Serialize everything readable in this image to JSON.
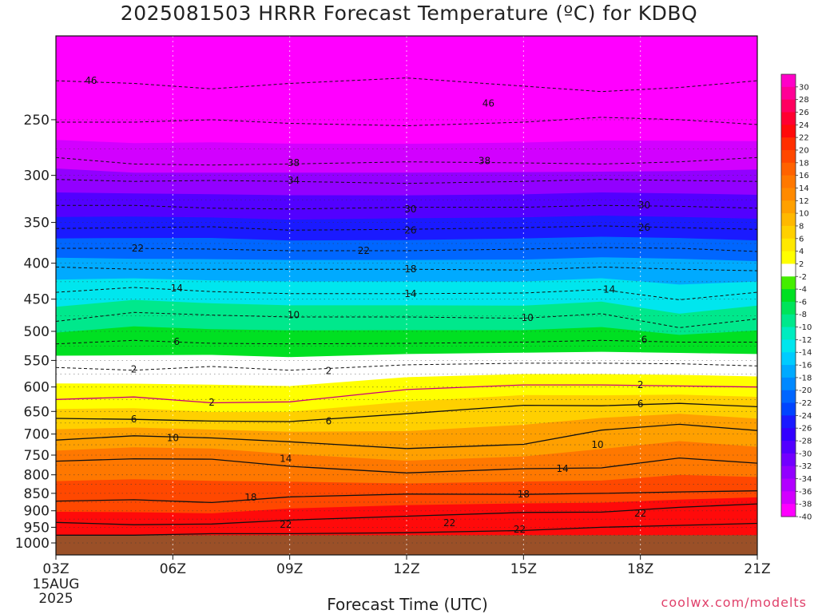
{
  "title": "2025081503 HRRR Forecast Temperature (ºC) for KDBQ",
  "credit": "coolwx.com/modelts",
  "chart_data": {
    "type": "heatmap",
    "title": "2025081503 HRRR Forecast Temperature (ºC) for KDBQ",
    "xlabel": "Forecast Time (UTC)",
    "ylabel": "",
    "x_ticks": [
      "03Z",
      "06Z",
      "09Z",
      "12Z",
      "15Z",
      "18Z",
      "21Z"
    ],
    "x_first_date": [
      "15AUG",
      "2025"
    ],
    "x_hours": [
      3,
      21
    ],
    "y_ticks": [
      250,
      300,
      350,
      400,
      450,
      500,
      550,
      600,
      650,
      700,
      750,
      800,
      850,
      900,
      950,
      1000
    ],
    "y_scale": "log-pressure",
    "y_range": [
      190,
      1040
    ],
    "surface_pressure": 975,
    "colorbar": {
      "ticks": [
        30,
        28,
        26,
        24,
        22,
        20,
        18,
        16,
        14,
        12,
        10,
        8,
        6,
        4,
        2,
        -2,
        -4,
        -6,
        -8,
        -10,
        -12,
        -14,
        -16,
        -18,
        -20,
        -22,
        -24,
        -26,
        -28,
        -30,
        -32,
        -34,
        -36,
        -38,
        -40
      ],
      "colors": [
        "#ff00c8",
        "#ff0096",
        "#ff0060",
        "#ff0030",
        "#ff0a0a",
        "#ff2e00",
        "#ff4800",
        "#ff6200",
        "#ff7800",
        "#ff8a00",
        "#ffa000",
        "#ffb800",
        "#ffd000",
        "#ffe800",
        "#ffff00",
        "#ffffff",
        "#44ee00",
        "#00e022",
        "#00e45a",
        "#00e88c",
        "#00ecc0",
        "#00e6ee",
        "#00ccff",
        "#00aaff",
        "#0088ff",
        "#0066ff",
        "#0044ff",
        "#1a1aff",
        "#3300ff",
        "#5200ff",
        "#7200ff",
        "#9200ff",
        "#b200ff",
        "#d200ff",
        "#ff00ff"
      ]
    },
    "isotherms": [
      {
        "label": "-46",
        "values": [
          220,
          222,
          226,
          222,
          218,
          224,
          228,
          225,
          220
        ]
      },
      {
        "label": "-46",
        "values": [
          252,
          252,
          250,
          253,
          255,
          252,
          248,
          250,
          254
        ]
      },
      {
        "label": "-38",
        "values": [
          283,
          289,
          290,
          289,
          287,
          288,
          289,
          287,
          283
        ]
      },
      {
        "label": "-34",
        "values": [
          304,
          306,
          305,
          306,
          308,
          306,
          304,
          305,
          306
        ]
      },
      {
        "label": "-30",
        "values": [
          331,
          331,
          334,
          335,
          333,
          333,
          331,
          332,
          334
        ]
      },
      {
        "label": "-26",
        "values": [
          357,
          356,
          355,
          359,
          358,
          356,
          354,
          356,
          358
        ]
      },
      {
        "label": "-22",
        "values": [
          381,
          381,
          382,
          384,
          384,
          382,
          380,
          381,
          385
        ]
      },
      {
        "label": "-18",
        "values": [
          405,
          408,
          408,
          408,
          408,
          409,
          405,
          408,
          410
        ]
      },
      {
        "label": "-14",
        "values": [
          440,
          433,
          439,
          442,
          442,
          441,
          436,
          451,
          440
        ]
      },
      {
        "label": "-10",
        "values": [
          484,
          470,
          474,
          477,
          477,
          479,
          472,
          494,
          480
        ]
      },
      {
        "label": "-6",
        "values": [
          521,
          515,
          520,
          521,
          520,
          518,
          515,
          518,
          518
        ]
      },
      {
        "label": "-2",
        "values": [
          563,
          568,
          561,
          568,
          558,
          555,
          555,
          556,
          560
        ]
      },
      {
        "label": "2",
        "values": [
          625,
          620,
          632,
          630,
          605,
          596,
          596,
          598,
          600
        ]
      },
      {
        "label": "6",
        "values": [
          665,
          667,
          671,
          672,
          655,
          637,
          638,
          633,
          640
        ]
      },
      {
        "label": "10",
        "values": [
          714,
          704,
          709,
          718,
          734,
          724,
          691,
          678,
          692
        ]
      },
      {
        "label": "14",
        "values": [
          765,
          759,
          760,
          778,
          795,
          784,
          782,
          757,
          770
        ]
      },
      {
        "label": "18",
        "values": [
          872,
          868,
          876,
          860,
          852,
          853,
          850,
          846,
          843
        ]
      },
      {
        "label": "22",
        "values": [
          935,
          942,
          940,
          928,
          916,
          905,
          904,
          890,
          880
        ]
      },
      {
        "label": "22",
        "values": [
          975,
          975,
          970,
          970,
          967,
          960,
          950,
          944,
          938
        ]
      }
    ],
    "isotherm_hours": [
      3,
      5,
      7,
      9,
      12,
      15,
      17,
      19,
      21
    ],
    "contour_labels": [
      {
        "text": "46",
        "hour": 3.9,
        "p": 220
      },
      {
        "text": "46",
        "hour": 14.1,
        "p": 237
      },
      {
        "text": "38",
        "hour": 9.1,
        "p": 288
      },
      {
        "text": "38",
        "hour": 14.0,
        "p": 286
      },
      {
        "text": "34",
        "hour": 9.1,
        "p": 305
      },
      {
        "text": "30",
        "hour": 12.1,
        "p": 335
      },
      {
        "text": "30",
        "hour": 18.1,
        "p": 331
      },
      {
        "text": "26",
        "hour": 12.1,
        "p": 359
      },
      {
        "text": "26",
        "hour": 18.1,
        "p": 356
      },
      {
        "text": "22",
        "hour": 5.1,
        "p": 381
      },
      {
        "text": "22",
        "hour": 10.9,
        "p": 384
      },
      {
        "text": "18",
        "hour": 12.1,
        "p": 408
      },
      {
        "text": "14",
        "hour": 6.1,
        "p": 434
      },
      {
        "text": "14",
        "hour": 12.1,
        "p": 442
      },
      {
        "text": "14",
        "hour": 17.2,
        "p": 436
      },
      {
        "text": "10",
        "hour": 9.1,
        "p": 474
      },
      {
        "text": "10",
        "hour": 15.1,
        "p": 478
      },
      {
        "text": "6",
        "hour": 6.1,
        "p": 517
      },
      {
        "text": "6",
        "hour": 18.1,
        "p": 514
      },
      {
        "text": "2",
        "hour": 5.0,
        "p": 566
      },
      {
        "text": "2",
        "hour": 10.0,
        "p": 569
      },
      {
        "text": "2",
        "hour": 7.0,
        "p": 631
      },
      {
        "text": "2",
        "hour": 18.0,
        "p": 596
      },
      {
        "text": "6",
        "hour": 5.0,
        "p": 667
      },
      {
        "text": "6",
        "hour": 10.0,
        "p": 671
      },
      {
        "text": "6",
        "hour": 18.0,
        "p": 634
      },
      {
        "text": "10",
        "hour": 6.0,
        "p": 709
      },
      {
        "text": "10",
        "hour": 16.9,
        "p": 725
      },
      {
        "text": "14",
        "hour": 8.9,
        "p": 759
      },
      {
        "text": "14",
        "hour": 16.0,
        "p": 784
      },
      {
        "text": "18",
        "hour": 8.0,
        "p": 862
      },
      {
        "text": "18",
        "hour": 15.0,
        "p": 852
      },
      {
        "text": "22",
        "hour": 8.9,
        "p": 941
      },
      {
        "text": "22",
        "hour": 13.1,
        "p": 937
      },
      {
        "text": "22",
        "hour": 14.9,
        "p": 957
      },
      {
        "text": "22",
        "hour": 18.0,
        "p": 908
      }
    ]
  }
}
